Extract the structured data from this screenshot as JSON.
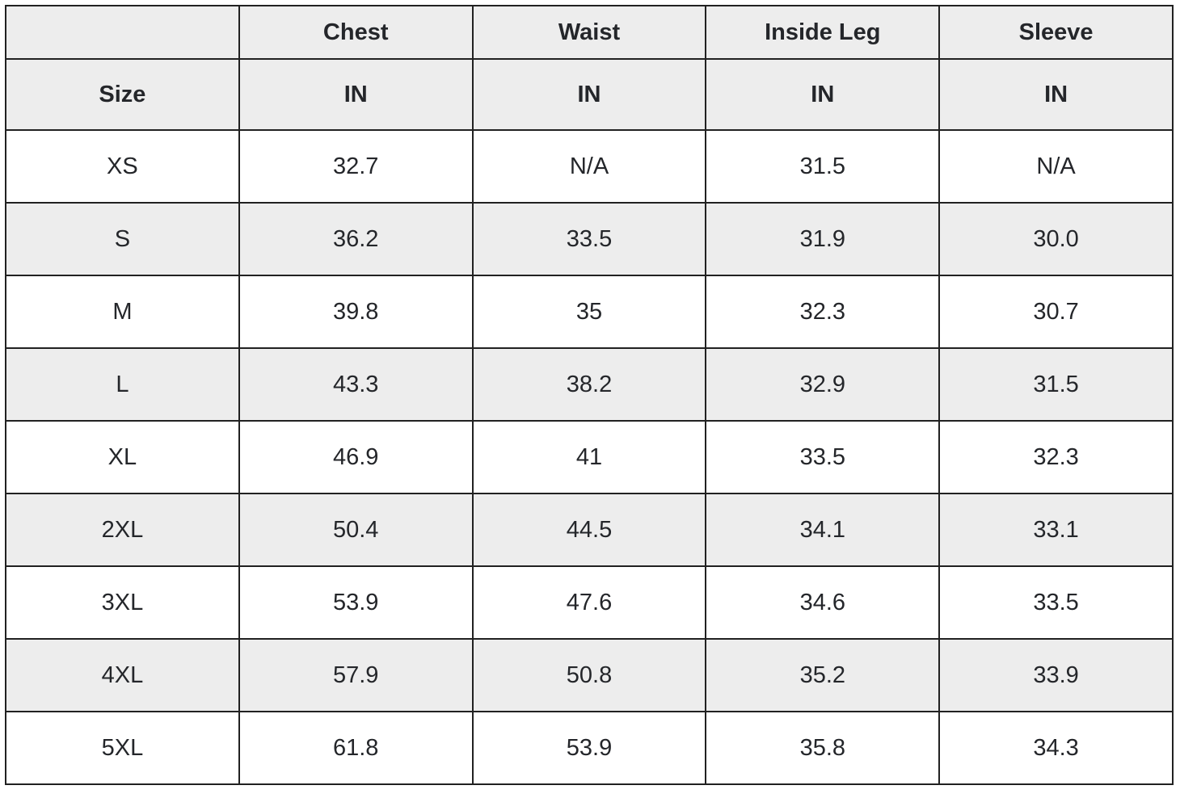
{
  "colors": {
    "header_background": "#ededed",
    "stripe_background": "#ededed",
    "row_background": "#ffffff",
    "border": "#212121",
    "text": "#24262a"
  },
  "table": {
    "header_row1": [
      "",
      "Chest",
      "Waist",
      "Inside Leg",
      "Sleeve"
    ],
    "header_row2": [
      "Size",
      "IN",
      "IN",
      "IN",
      "IN"
    ],
    "rows": [
      {
        "size": "XS",
        "chest": "32.7",
        "waist": "N/A",
        "inside_leg": "31.5",
        "sleeve": "N/A"
      },
      {
        "size": "S",
        "chest": "36.2",
        "waist": "33.5",
        "inside_leg": "31.9",
        "sleeve": "30.0"
      },
      {
        "size": "M",
        "chest": "39.8",
        "waist": "35",
        "inside_leg": "32.3",
        "sleeve": "30.7"
      },
      {
        "size": "L",
        "chest": "43.3",
        "waist": "38.2",
        "inside_leg": "32.9",
        "sleeve": "31.5"
      },
      {
        "size": "XL",
        "chest": "46.9",
        "waist": "41",
        "inside_leg": "33.5",
        "sleeve": "32.3"
      },
      {
        "size": "2XL",
        "chest": "50.4",
        "waist": "44.5",
        "inside_leg": "34.1",
        "sleeve": "33.1"
      },
      {
        "size": "3XL",
        "chest": "53.9",
        "waist": "47.6",
        "inside_leg": "34.6",
        "sleeve": "33.5"
      },
      {
        "size": "4XL",
        "chest": "57.9",
        "waist": "50.8",
        "inside_leg": "35.2",
        "sleeve": "33.9"
      },
      {
        "size": "5XL",
        "chest": "61.8",
        "waist": "53.9",
        "inside_leg": "35.8",
        "sleeve": "34.3"
      }
    ]
  },
  "chart_data": {
    "type": "table",
    "columns": [
      "Size",
      "Chest IN",
      "Waist IN",
      "Inside Leg IN",
      "Sleeve IN"
    ],
    "rows": [
      [
        "XS",
        "32.7",
        "N/A",
        "31.5",
        "N/A"
      ],
      [
        "S",
        "36.2",
        "33.5",
        "31.9",
        "30.0"
      ],
      [
        "M",
        "39.8",
        "35",
        "32.3",
        "30.7"
      ],
      [
        "L",
        "43.3",
        "38.2",
        "32.9",
        "31.5"
      ],
      [
        "XL",
        "46.9",
        "41",
        "33.5",
        "32.3"
      ],
      [
        "2XL",
        "50.4",
        "44.5",
        "34.1",
        "33.1"
      ],
      [
        "3XL",
        "53.9",
        "47.6",
        "34.6",
        "33.5"
      ],
      [
        "4XL",
        "57.9",
        "50.8",
        "35.2",
        "33.9"
      ],
      [
        "5XL",
        "61.8",
        "53.9",
        "35.8",
        "34.3"
      ]
    ],
    "layout_hints": {
      "header_rows": 2,
      "row_striping": "white / light-gray alternating starting white at XS",
      "grid": true
    }
  }
}
